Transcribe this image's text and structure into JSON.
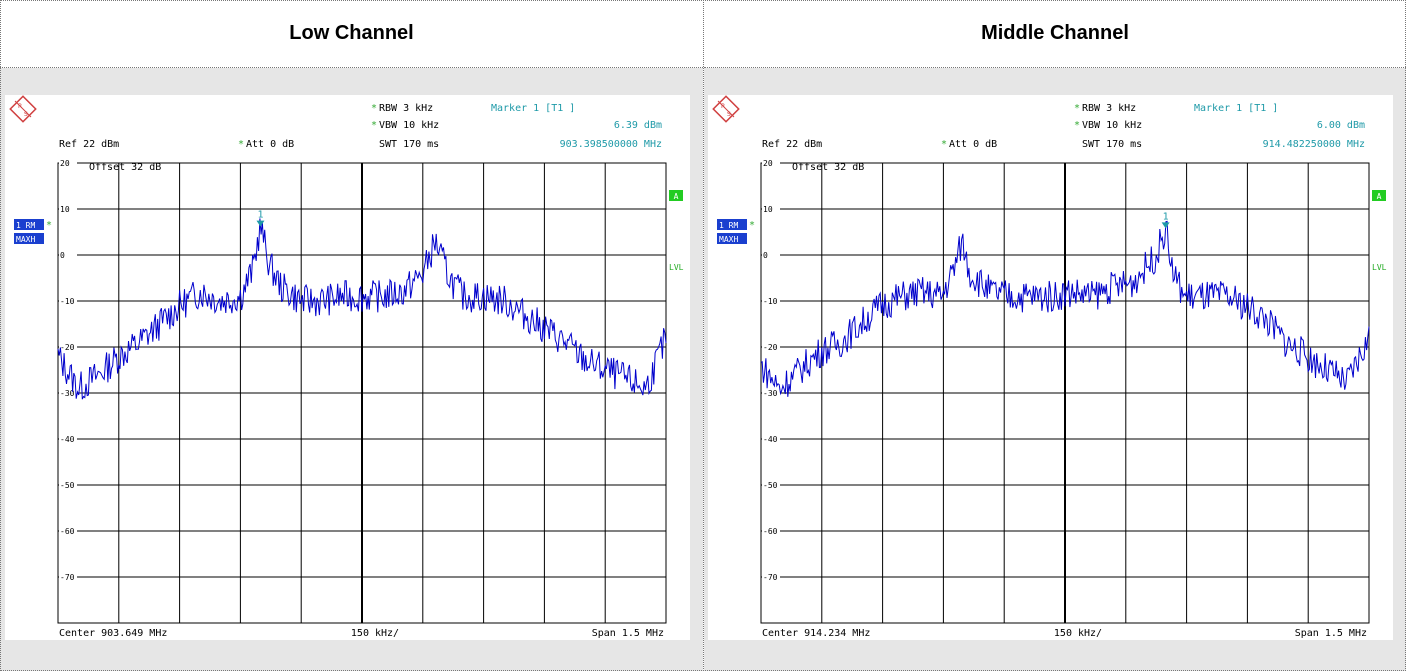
{
  "colors": {
    "trace": "#0000cc",
    "marker": "#1f9aa8",
    "label_bg": "#1a3fcf",
    "green": "#22cc22",
    "star": "#33aa33"
  },
  "icons": [
    "rohde-schwarz-logo-icon"
  ],
  "panels": [
    {
      "title": "Low Channel",
      "rbw": "RBW 3 kHz",
      "vbw": "VBW 10 kHz",
      "swt": "SWT 170 ms",
      "ref": "Ref  22 dBm",
      "att": "Att  0 dB",
      "offset": "Offset  32 dB",
      "marker_title": "Marker 1 [T1 ]",
      "marker_level": "6.39 dBm",
      "marker_freq": "903.398500000 MHz",
      "marker_label": "1",
      "trace_label_1": "1 RM",
      "trace_label_2": "MAXH",
      "badge_a": "A",
      "lvl": "LVL",
      "star": "*",
      "center": "Center 903.649 MHz",
      "per_div": "150 kHz/",
      "span": "Span 1.5 MHz"
    },
    {
      "title": "Middle Channel",
      "rbw": "RBW 3 kHz",
      "vbw": "VBW 10 kHz",
      "swt": "SWT 170 ms",
      "ref": "Ref  22 dBm",
      "att": "Att  0 dB",
      "offset": "Offset  32 dB",
      "marker_title": "Marker 1 [T1 ]",
      "marker_level": "6.00 dBm",
      "marker_freq": "914.482250000 MHz",
      "marker_label": "1",
      "trace_label_1": "1 RM",
      "trace_label_2": "MAXH",
      "badge_a": "A",
      "lvl": "LVL",
      "star": "*",
      "center": "Center 914.234 MHz",
      "per_div": "150 kHz/",
      "span": "Span 1.5 MHz"
    }
  ],
  "chart_data": [
    {
      "type": "line",
      "title": "Low Channel",
      "xlabel": "",
      "ylabel": "",
      "y_unit": "dBm",
      "center_mhz": 903.649,
      "span_mhz": 1.5,
      "xlim": [
        902.899,
        904.399
      ],
      "ylim": [
        -80,
        20
      ],
      "yticks": [
        20,
        10,
        0,
        -10,
        -20,
        -30,
        -40,
        -50,
        -60,
        -70
      ],
      "ytick_labels": [
        "20",
        "10",
        "0",
        "-10",
        "-20",
        "-30",
        "-40",
        "-50",
        "-60",
        "-70"
      ],
      "grid": true,
      "marker": {
        "x": 903.3985,
        "y": 6.39
      },
      "series": [
        {
          "x": [
            902.899,
            902.95,
            903.0,
            903.05,
            903.1,
            903.15,
            903.2,
            903.25,
            903.3,
            903.35,
            903.38,
            903.3985,
            903.42,
            903.45,
            903.5,
            903.55,
            903.6,
            903.65,
            903.7,
            903.75,
            903.8,
            903.83,
            903.86,
            903.88,
            903.9,
            903.95,
            904.0,
            904.05,
            904.1,
            904.15,
            904.2,
            904.25,
            904.3,
            904.35,
            904.399
          ],
          "y": [
            -22,
            -29,
            -26,
            -22,
            -19,
            -15,
            -11,
            -8,
            -10,
            -9,
            -3,
            6.39,
            -2,
            -7,
            -10,
            -10,
            -9,
            -9,
            -9,
            -8,
            -4,
            3,
            -4,
            -7,
            -9,
            -9,
            -10,
            -13,
            -16,
            -19,
            -23,
            -25,
            -27,
            -29,
            -18
          ]
        }
      ]
    },
    {
      "type": "line",
      "title": "Middle Channel",
      "xlabel": "",
      "ylabel": "",
      "y_unit": "dBm",
      "center_mhz": 914.234,
      "span_mhz": 1.5,
      "xlim": [
        913.484,
        914.984
      ],
      "ylim": [
        -80,
        20
      ],
      "yticks": [
        20,
        10,
        0,
        -10,
        -20,
        -30,
        -40,
        -50,
        -60,
        -70
      ],
      "ytick_labels": [
        "20",
        "10",
        "0",
        "-10",
        "-20",
        "-30",
        "-40",
        "-50",
        "-60",
        "-70"
      ],
      "grid": true,
      "marker": {
        "x": 914.48225,
        "y": 6.0
      },
      "series": [
        {
          "x": [
            913.484,
            913.53,
            913.58,
            913.63,
            913.68,
            913.73,
            913.78,
            913.83,
            913.88,
            913.93,
            913.96,
            913.98,
            914.0,
            914.05,
            914.1,
            914.15,
            914.2,
            914.25,
            914.3,
            914.35,
            914.4,
            914.44,
            914.46,
            914.48225,
            914.5,
            914.53,
            914.58,
            914.63,
            914.68,
            914.73,
            914.78,
            914.83,
            914.88,
            914.93,
            914.984
          ],
          "y": [
            -24,
            -29,
            -25,
            -21,
            -19,
            -15,
            -11,
            -9,
            -8,
            -9,
            -3,
            3,
            -4,
            -8,
            -9,
            -9,
            -9,
            -8,
            -9,
            -7,
            -6,
            -2,
            0,
            6.0,
            -4,
            -9,
            -9,
            -9,
            -11,
            -14,
            -19,
            -22,
            -25,
            -28,
            -18
          ]
        }
      ]
    }
  ]
}
